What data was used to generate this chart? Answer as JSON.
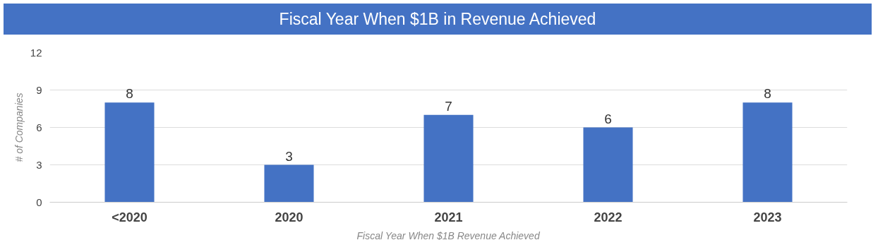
{
  "chart_data": {
    "type": "bar",
    "title": "Fiscal Year When $1B in Revenue Achieved",
    "xlabel": "Fiscal Year When $1B Revenue Achieved",
    "ylabel": "# of Companies",
    "categories": [
      "<2020",
      "2020",
      "2021",
      "2022",
      "2023"
    ],
    "values": [
      8,
      3,
      7,
      6,
      8
    ],
    "color": "#4472c4",
    "ylim": [
      0,
      12
    ],
    "yticks": [
      0,
      3,
      6,
      9,
      12
    ],
    "grid": "y",
    "data_labels": true
  }
}
